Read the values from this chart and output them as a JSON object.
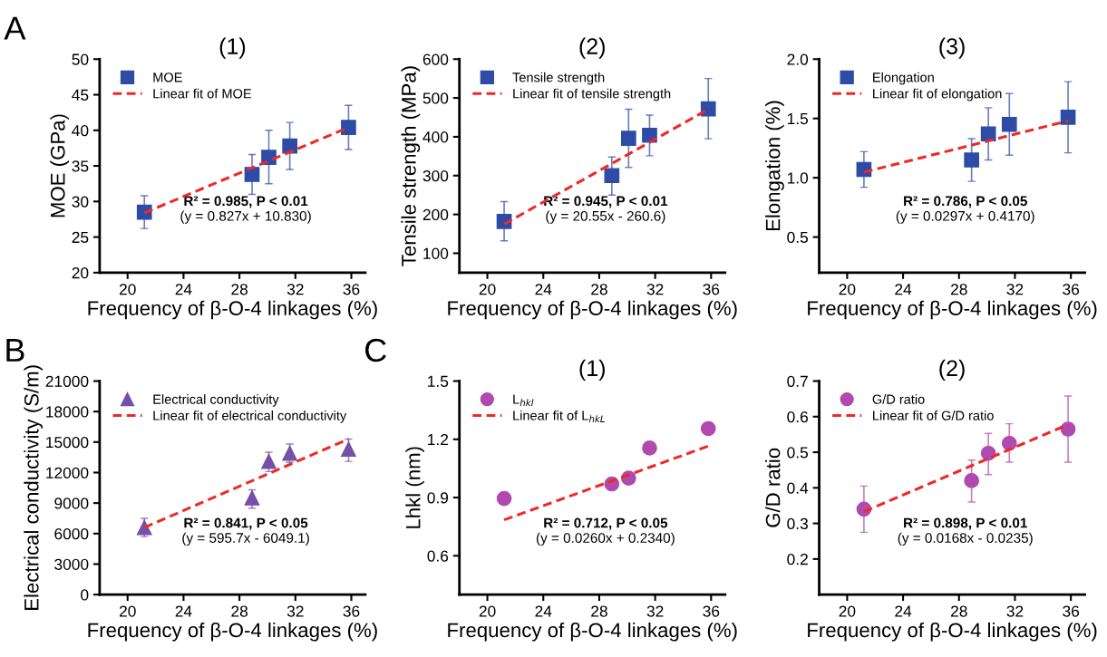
{
  "chart_data": [
    {
      "type": "scatter",
      "title": "(1)",
      "xlabel": "Frequency of β-O-4 linkages (%)",
      "ylabel": "MOE (GPa)",
      "xlim": [
        18,
        37
      ],
      "xticks": [
        20,
        24,
        28,
        32,
        36
      ],
      "ylim": [
        20,
        50
      ],
      "yticks": [
        20,
        25,
        30,
        35,
        40,
        45,
        50
      ],
      "legend": "top left",
      "grid": false,
      "annotations": [
        "A",
        "R² = 0.985, P < 0.01",
        "(y = 0.827x + 10.830)"
      ],
      "series": [
        {
          "name": "MOE",
          "marker": "square",
          "color": "#2e4ba6",
          "x": [
            21.2,
            28.9,
            30.1,
            31.6,
            35.8
          ],
          "values": [
            28.5,
            33.8,
            36.2,
            37.8,
            40.4
          ],
          "errors": [
            [
              26.2,
              30.8
            ],
            [
              31.0,
              36.6
            ],
            [
              32.5,
              40.0
            ],
            [
              34.5,
              41.1
            ],
            [
              37.3,
              43.5
            ]
          ]
        },
        {
          "name": "Linear fit of MOE",
          "type": "line",
          "line_style": "dashed",
          "marker": "none",
          "color": "#f02828",
          "x": [
            21.2,
            35.8
          ],
          "values": [
            28.4,
            40.4
          ]
        }
      ]
    },
    {
      "type": "scatter",
      "title": "(2)",
      "xlabel": "Frequency of β-O-4 linkages (%)",
      "ylabel": "Tensile strength (MPa)",
      "xlim": [
        18,
        37
      ],
      "xticks": [
        20,
        24,
        28,
        32,
        36
      ],
      "ylim": [
        50,
        600
      ],
      "yticks": [
        100,
        200,
        300,
        400,
        500,
        600
      ],
      "legend": "top left",
      "grid": false,
      "annotations": [
        "R² = 0.945, P < 0.01",
        "(y = 20.55x - 260.6)"
      ],
      "series": [
        {
          "name": "Tensile strength",
          "marker": "square",
          "color": "#2e4ba6",
          "x": [
            21.2,
            28.9,
            30.1,
            31.6,
            35.8
          ],
          "values": [
            182,
            300,
            396,
            404,
            472
          ],
          "errors": [
            [
              132,
              233
            ],
            [
              250,
              348
            ],
            [
              321,
              471
            ],
            [
              351,
              456
            ],
            [
              395,
              550
            ]
          ]
        },
        {
          "name": "Linear fit of tensile strength",
          "type": "line",
          "line_style": "dashed",
          "marker": "none",
          "color": "#f02828",
          "x": [
            21.2,
            35.8
          ],
          "values": [
            175,
            471
          ]
        }
      ]
    },
    {
      "type": "scatter",
      "title": "(3)",
      "xlabel": "Frequency of β-O-4 linkages (%)",
      "ylabel": "Elongation (%)",
      "xlim": [
        18,
        37
      ],
      "xticks": [
        20,
        24,
        28,
        32,
        36
      ],
      "ylim": [
        0.2,
        2.0
      ],
      "yticks": [
        {
          "value": 0.5,
          "label": "0.5"
        },
        {
          "value": 1.0,
          "label": "1.0"
        },
        {
          "value": 1.5,
          "label": "1.5"
        },
        {
          "value": 2.0,
          "label": "2.0"
        }
      ],
      "legend": "top left",
      "grid": false,
      "annotations": [
        "R² = 0.786, P < 0.05",
        "(y = 0.0297x + 0.4170)"
      ],
      "series": [
        {
          "name": "Elongation",
          "marker": "square",
          "color": "#2e4ba6",
          "x": [
            21.2,
            28.9,
            30.1,
            31.6,
            35.8
          ],
          "values": [
            1.07,
            1.15,
            1.37,
            1.45,
            1.51
          ],
          "errors": [
            [
              0.92,
              1.22
            ],
            [
              0.97,
              1.33
            ],
            [
              1.15,
              1.59
            ],
            [
              1.19,
              1.71
            ],
            [
              1.21,
              1.81
            ]
          ]
        },
        {
          "name": "Linear fit of elongation",
          "type": "line",
          "line_style": "dashed",
          "marker": "none",
          "color": "#f02828",
          "x": [
            21.2,
            35.8
          ],
          "values": [
            1.047,
            1.48
          ]
        }
      ]
    },
    {
      "type": "scatter",
      "xlabel": "Frequency of β-O-4 linkages (%)",
      "ylabel": "Electrical conductivity (S/m)",
      "xlim": [
        18,
        37
      ],
      "xticks": [
        20,
        24,
        28,
        32,
        36
      ],
      "ylim": [
        0,
        21000
      ],
      "yticks": [
        0,
        3000,
        6000,
        9000,
        12000,
        15000,
        18000,
        21000
      ],
      "legend": "top left",
      "grid": false,
      "annotations": [
        "B",
        "R² = 0.841, P < 0.05",
        "(y = 595.7x - 6049.1)"
      ],
      "series": [
        {
          "name": "Electrical conductivity",
          "marker": "triangle",
          "color": "#7450a8",
          "x": [
            21.2,
            28.9,
            30.1,
            31.6,
            35.8
          ],
          "values": [
            6600,
            9500,
            13100,
            13900,
            14300
          ],
          "errors": [
            [
              5700,
              7500
            ],
            [
              8500,
              10300
            ],
            [
              12100,
              14000
            ],
            [
              13000,
              14800
            ],
            [
              13100,
              15300
            ]
          ]
        },
        {
          "name": "Linear fit of electrical conductivity",
          "type": "line",
          "line_style": "dashed",
          "marker": "none",
          "color": "#f02828",
          "x": [
            21.2,
            35.8
          ],
          "values": [
            6600,
            15300
          ]
        }
      ]
    },
    {
      "type": "scatter",
      "title": "(1)",
      "xlabel": "Frequency of β-O-4 linkages (%)",
      "ylabel": "Lhkl (nm)",
      "xlim": [
        18,
        37
      ],
      "xticks": [
        20,
        24,
        28,
        32,
        36
      ],
      "ylim": [
        0.4,
        1.5
      ],
      "yticks": [
        0.6,
        0.9,
        1.2,
        1.5
      ],
      "legend": "top left",
      "grid": false,
      "annotations": [
        "C",
        "R² = 0.712, P < 0.05",
        "(y = 0.0260x + 0.2340)"
      ],
      "series": [
        {
          "name": "L$_{hkl}$",
          "marker": "circle",
          "color": "#b04aae",
          "x": [
            21.2,
            28.9,
            30.1,
            31.6,
            35.8
          ],
          "values": [
            0.895,
            0.97,
            1.0,
            1.155,
            1.255
          ]
        },
        {
          "name": "Linear fit of L$_{hkL}$",
          "type": "line",
          "line_style": "dashed",
          "marker": "none",
          "color": "#f02828",
          "x": [
            21.2,
            35.8
          ],
          "values": [
            0.785,
            1.165
          ]
        }
      ]
    },
    {
      "type": "scatter",
      "title": "(2)",
      "xlabel": "Frequency of β-O-4 linkages (%)",
      "ylabel": "G/D ratio",
      "xlim": [
        18,
        37
      ],
      "xticks": [
        20,
        24,
        28,
        32,
        36
      ],
      "ylim": [
        0.1,
        0.7
      ],
      "yticks": [
        0.2,
        0.3,
        0.4,
        0.5,
        0.6,
        0.7
      ],
      "legend": "top left",
      "grid": false,
      "annotations": [
        "R² = 0.898, P < 0.01",
        "(y = 0.0168x - 0.0235)"
      ],
      "series": [
        {
          "name": "G/D ratio",
          "marker": "circle",
          "color": "#b04aae",
          "x": [
            21.2,
            28.9,
            30.1,
            31.6,
            35.8
          ],
          "values": [
            0.34,
            0.42,
            0.497,
            0.525,
            0.565
          ],
          "errors": [
            [
              0.275,
              0.405
            ],
            [
              0.36,
              0.478
            ],
            [
              0.437,
              0.553
            ],
            [
              0.472,
              0.58
            ],
            [
              0.472,
              0.658
            ]
          ]
        },
        {
          "name": "Linear fit of G/D ratio",
          "type": "line",
          "line_style": "dashed",
          "marker": "none",
          "color": "#f02828",
          "x": [
            21.2,
            35.8
          ],
          "values": [
            0.333,
            0.578
          ]
        }
      ]
    }
  ]
}
